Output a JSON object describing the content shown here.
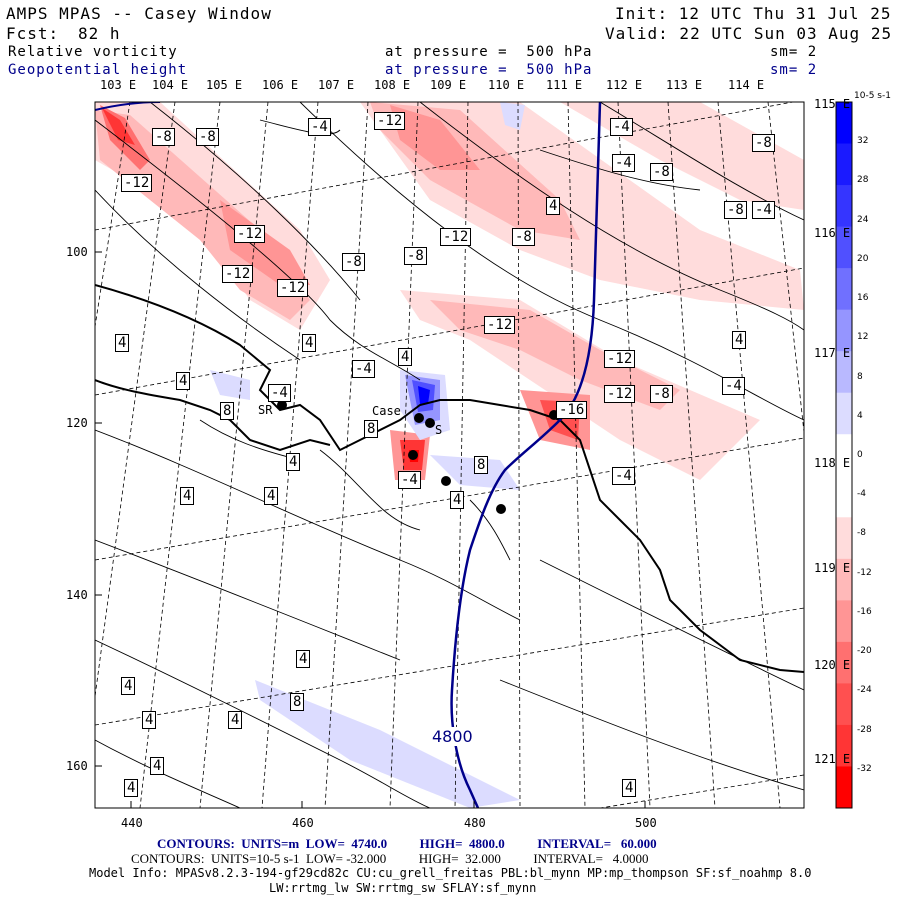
{
  "header": {
    "title": "AMPS MPAS -- Casey Window",
    "init": "Init: 12 UTC Thu 31 Jul 25",
    "fcst_label": "Fcst:",
    "fcst_value": "82 h",
    "valid": "Valid: 22 UTC Sun 03 Aug 25",
    "field1": "Relative vorticity",
    "field1_level": "at pressure =  500 hPa",
    "field1_sm": "sm= 2",
    "field2": "Geopotential height",
    "field2_level": "at pressure =  500 hPa",
    "field2_sm": "sm= 2"
  },
  "map": {
    "top_lon_labels": [
      "103 E",
      "104 E",
      "105 E",
      "106 E",
      "107 E",
      "108 E",
      "109 E",
      "110 E",
      "111 E",
      "112 E",
      "113 E",
      "114 E"
    ],
    "right_lon_labels": [
      "115 E",
      "116 E",
      "117 E",
      "118 E",
      "119 E",
      "120 E",
      "121 E"
    ],
    "y_ticks": [
      "100",
      "120",
      "140",
      "160"
    ],
    "x_ticks": [
      "440",
      "460",
      "480",
      "500"
    ],
    "contour_labels": [
      "-8",
      "-8",
      "-4",
      "-12",
      "-4",
      "-8",
      "-12",
      "-4",
      "-8",
      "4",
      "-4",
      "-8",
      "-12",
      "-12",
      "-8",
      "-12",
      "-8",
      "-12",
      "-12",
      "-8",
      "4",
      "-12",
      "4",
      "-4",
      "-12",
      "-8",
      "-4",
      "4",
      "4",
      "-4",
      "8",
      "4",
      "-4",
      "8",
      "-16",
      "-4",
      "4",
      "4",
      "4",
      "8",
      "4",
      "4",
      "4",
      "4",
      "4",
      "4",
      "8",
      "4",
      "4"
    ],
    "height_label": "4800",
    "stations": [
      "SR",
      "Case",
      "S"
    ],
    "colorbar": {
      "unit": "10-5 s-1",
      "ticks": [
        "32",
        "28",
        "24",
        "20",
        "16",
        "12",
        "8",
        "4",
        "0",
        "-4",
        "-8",
        "-12",
        "-16",
        "-20",
        "-24",
        "-28",
        "-32"
      ],
      "colors": [
        "#0000ff",
        "#1a1aff",
        "#3535ff",
        "#5050ff",
        "#7070ff",
        "#9595ff",
        "#b9b9ff",
        "#dcdcff",
        "#ffffff",
        "#ffffff",
        "#ffdcdc",
        "#ffb9b9",
        "#ff9595",
        "#ff7070",
        "#ff5050",
        "#ff3535",
        "#ff0000"
      ]
    }
  },
  "footer": {
    "contours1": "CONTOURS:  UNITS=m  LOW=  4740.0          HIGH=  4800.0          INTERVAL=   60.000",
    "contours2": "CONTOURS:  UNITS=10-5 s-1  LOW= -32.000          HIGH=  32.000          INTERVAL=   4.0000",
    "model_info": "Model Info: MPASv8.2.3-194-gf29cd82c CU:cu_grell_freitas PBL:bl_mynn MP:mp_thompson SF:sf_noahmp 8.0",
    "model_info2": "LW:rrtmg_lw SW:rrtmg_sw SFLAY:sf_mynn"
  }
}
